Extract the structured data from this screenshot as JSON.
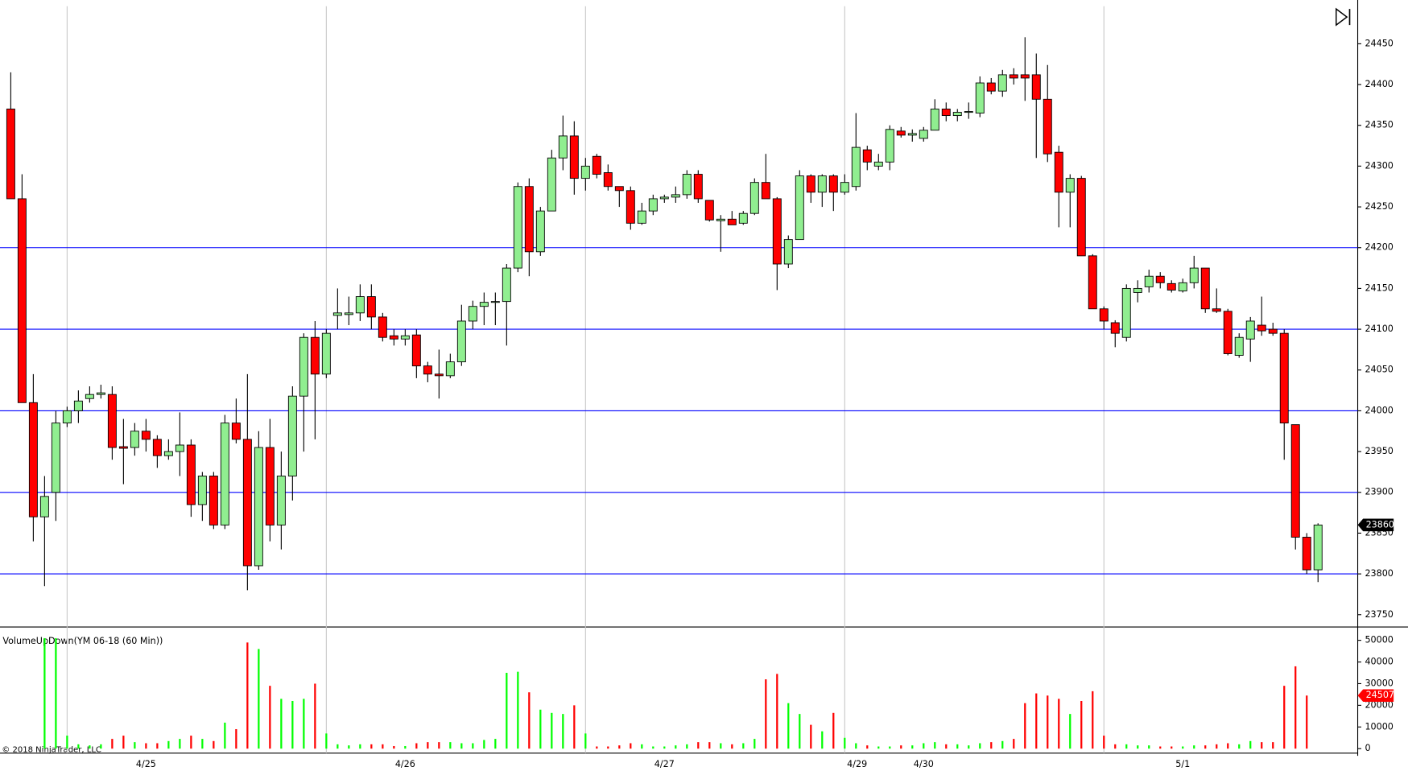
{
  "chart_data": [
    {
      "type": "candlestick",
      "open": [
        24370,
        24260,
        24010,
        23870,
        23900,
        23985,
        24000,
        24015,
        24020,
        24020,
        23956,
        23955,
        23975,
        23965,
        23945,
        23950,
        23958,
        23885,
        23920,
        23860,
        23985,
        23965,
        23810,
        23955,
        23860,
        23920,
        24018,
        24090,
        24045,
        24117,
        24118,
        24120,
        24140,
        24115,
        24092,
        24088,
        24093,
        24055,
        24045,
        24043,
        24060,
        24110,
        24128,
        24133,
        24134,
        24175,
        24275,
        24195,
        24245,
        24310,
        24337,
        24285,
        24312,
        24292,
        24275,
        24270,
        24230,
        24245,
        24260,
        24262,
        24265,
        24290,
        24258,
        24233,
        24235,
        24230,
        24242,
        24280,
        24260,
        24180,
        24210,
        24288,
        24268,
        24288,
        24268,
        24275,
        24320,
        24300,
        24305,
        24343,
        24338,
        24334,
        24344,
        24370,
        24362,
        24366,
        24365,
        24402,
        24392,
        24412,
        24412,
        24412,
        24382,
        24317,
        24268,
        24285,
        24190,
        24125,
        24108,
        24090,
        24145,
        24152,
        24165,
        24156,
        24147,
        24157,
        24175,
        24125,
        24122,
        24068,
        24088,
        24105,
        24100,
        24095,
        23983,
        23845,
        23805
      ],
      "high": [
        24415,
        24290,
        24045,
        23920,
        24000,
        24005,
        24025,
        24030,
        24032,
        24030,
        23990,
        23985,
        23990,
        23970,
        23965,
        23998,
        23965,
        23925,
        23925,
        23995,
        24015,
        24045,
        23975,
        23990,
        23950,
        24030,
        24095,
        24110,
        24100,
        24150,
        24140,
        24155,
        24155,
        24120,
        24100,
        24100,
        24100,
        24060,
        24075,
        24070,
        24130,
        24135,
        24145,
        24145,
        24180,
        24280,
        24285,
        24250,
        24320,
        24362,
        24355,
        24310,
        24315,
        24302,
        24275,
        24275,
        24255,
        24265,
        24265,
        24275,
        24295,
        24295,
        24258,
        24240,
        24245,
        24245,
        24285,
        24315,
        24262,
        24215,
        24295,
        24290,
        24290,
        24290,
        24290,
        24365,
        24325,
        24315,
        24350,
        24348,
        24345,
        24348,
        24382,
        24378,
        24370,
        24378,
        24410,
        24408,
        24418,
        24420,
        24458,
        24438,
        24424,
        24325,
        24290,
        24288,
        24192,
        24128,
        24111,
        24155,
        24160,
        24173,
        24170,
        24160,
        24162,
        24190,
        24175,
        24150,
        24125,
        24095,
        24115,
        24140,
        24108,
        24100,
        23983,
        23850,
        23862
      ],
      "low": [
        24260,
        24010,
        23840,
        23785,
        23865,
        23980,
        23985,
        24010,
        24015,
        23940,
        23910,
        23945,
        23950,
        23930,
        23940,
        23920,
        23870,
        23865,
        23855,
        23855,
        23960,
        23780,
        23805,
        23840,
        23830,
        23890,
        23950,
        23965,
        24040,
        24100,
        24105,
        24110,
        24100,
        24085,
        24080,
        24080,
        24040,
        24035,
        24015,
        24040,
        24055,
        24100,
        24105,
        24105,
        24080,
        24170,
        24165,
        24190,
        24245,
        24295,
        24265,
        24270,
        24285,
        24270,
        24250,
        24222,
        24228,
        24240,
        24255,
        24255,
        24260,
        24255,
        24232,
        24195,
        24228,
        24228,
        24240,
        24260,
        24148,
        24175,
        24210,
        24255,
        24250,
        24245,
        24265,
        24270,
        24295,
        24295,
        24295,
        24335,
        24330,
        24330,
        24344,
        24355,
        24355,
        24358,
        24360,
        24388,
        24385,
        24400,
        24380,
        24310,
        24305,
        24225,
        24225,
        24190,
        24125,
        24100,
        24078,
        24085,
        24133,
        24145,
        24150,
        24145,
        24145,
        24150,
        24120,
        24120,
        24068,
        24065,
        24060,
        24092,
        24092,
        23940,
        23830,
        23800,
        23790
      ],
      "close": [
        24260,
        24010,
        23870,
        23895,
        23985,
        24000,
        24012,
        24020,
        24022,
        23955,
        23954,
        23975,
        23965,
        23945,
        23950,
        23958,
        23885,
        23920,
        23860,
        23985,
        23965,
        23810,
        23955,
        23860,
        23920,
        24018,
        24090,
        24045,
        24095,
        24120,
        24120,
        24140,
        24115,
        24090,
        24088,
        24092,
        24055,
        24045,
        24043,
        24060,
        24110,
        24128,
        24133,
        24134,
        24175,
        24275,
        24195,
        24245,
        24310,
        24337,
        24285,
        24300,
        24290,
        24275,
        24270,
        24230,
        24245,
        24260,
        24262,
        24265,
        24290,
        24260,
        24234,
        24235,
        24228,
        24242,
        24280,
        24260,
        24180,
        24210,
        24288,
        24268,
        24288,
        24268,
        24280,
        24323,
        24305,
        24305,
        24345,
        24338,
        24340,
        24344,
        24370,
        24362,
        24366,
        24367,
        24402,
        24392,
        24412,
        24408,
        24408,
        24382,
        24315,
        24268,
        24285,
        24190,
        24125,
        24110,
        24095,
        24150,
        24150,
        24165,
        24157,
        24148,
        24157,
        24175,
        24125,
        24122,
        24070,
        24090,
        24110,
        24098,
        24095,
        23985,
        23845,
        23805,
        23860
      ],
      "up_color": "#90ee90",
      "down_color": "#ff0000",
      "ylim": [
        23736,
        24496
      ],
      "yticks": [
        23750,
        23800,
        23850,
        23900,
        23950,
        24000,
        24050,
        24100,
        24150,
        24200,
        24250,
        24300,
        24350,
        24400,
        24450
      ],
      "hlines": [
        24200,
        24100,
        24000,
        23900,
        23800
      ],
      "hline_color": "#0000ff",
      "x_labels": [
        "4/25",
        "4/26",
        "4/27",
        "4/29",
        "4/30",
        "5/1"
      ],
      "copyright": "© 2018 NinjaTrader, LLC"
    },
    {
      "type": "bar",
      "title": "VolumeUpDown(YM 06-18 (60 Min))",
      "values": [
        0,
        0,
        0,
        51000,
        51000,
        6000,
        2000,
        1500,
        2000,
        4500,
        6000,
        3000,
        2500,
        2500,
        3500,
        4500,
        6000,
        4500,
        3500,
        12000,
        9000,
        49000,
        46000,
        29000,
        23000,
        22000,
        23000,
        30000,
        7000,
        2000,
        1500,
        2000,
        2000,
        2000,
        1200,
        1200,
        2500,
        3000,
        3000,
        3000,
        2500,
        2500,
        4000,
        4500,
        35000,
        35500,
        26000,
        18000,
        16500,
        16000,
        20000,
        7000,
        1000,
        1000,
        1500,
        2500,
        2000,
        1000,
        1000,
        1500,
        2000,
        3000,
        3000,
        2500,
        2000,
        2500,
        4500,
        32000,
        34500,
        21000,
        16000,
        11000,
        8000,
        16500,
        5000,
        2500,
        1500,
        1000,
        1000,
        1500,
        1500,
        2500,
        3000,
        2000,
        2000,
        1500,
        2500,
        3000,
        3500,
        4500,
        21000,
        25500,
        24500,
        23000,
        16000,
        22000,
        26500,
        6000,
        2000,
        2000,
        1500,
        1500,
        1000,
        1000,
        1000,
        1500,
        1500,
        2000,
        2500,
        2000,
        3500,
        3000,
        3000,
        29000,
        38000,
        24507,
        0
      ],
      "up_color": "#00ff00",
      "down_color": "#ff0000",
      "ylim": [
        -1240,
        54500
      ],
      "yticks": [
        0,
        10000,
        20000,
        30000,
        40000,
        50000
      ]
    }
  ]
}
